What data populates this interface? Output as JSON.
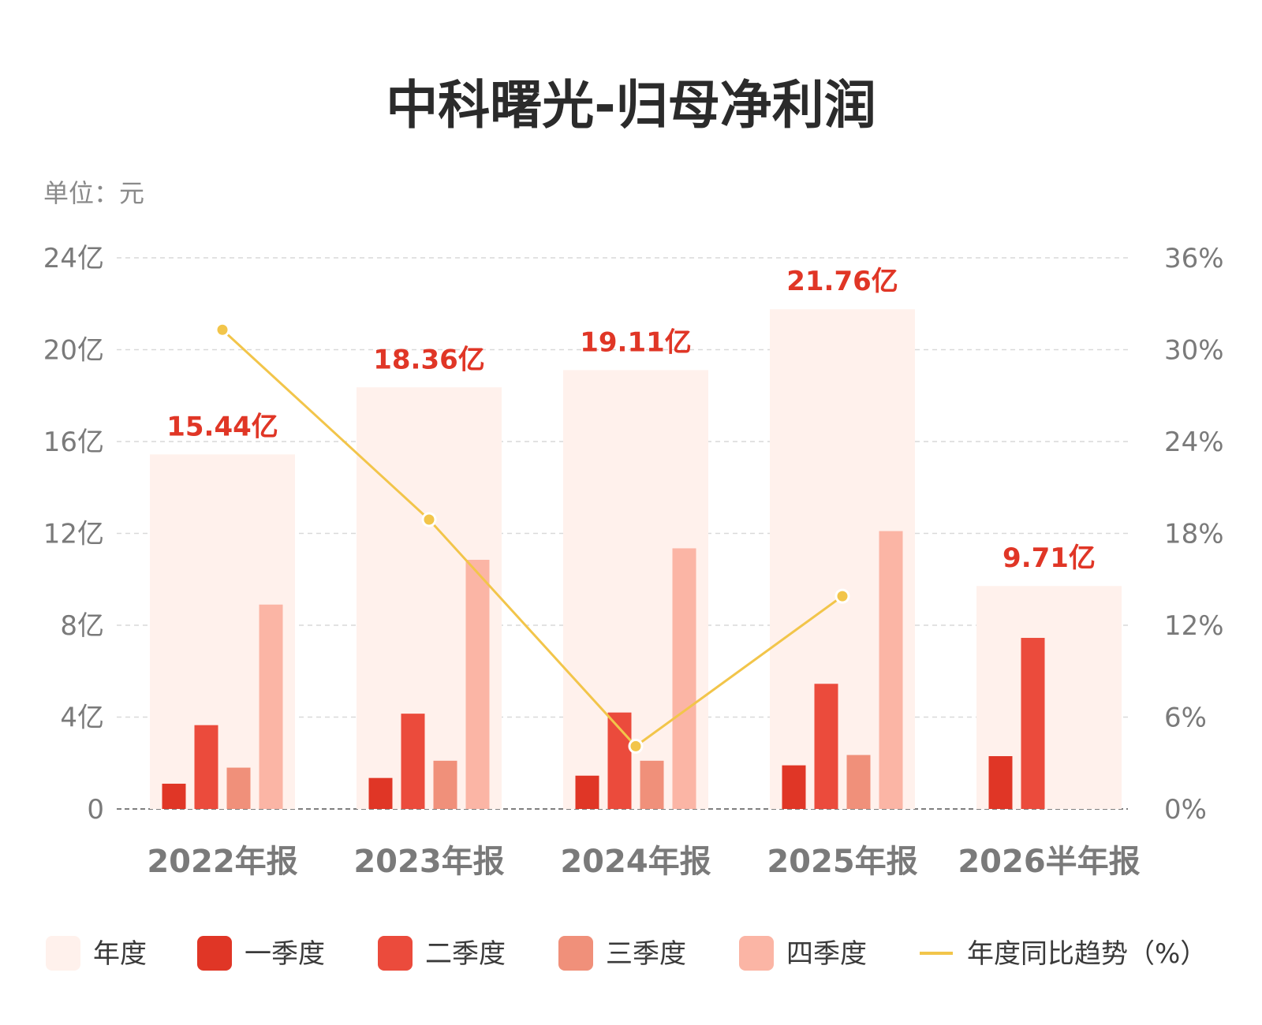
{
  "chart_data": {
    "type": "bar",
    "title": "中科曙光-归母净利润",
    "unit_label": "单位：元",
    "categories": [
      "2022年报",
      "2023年报",
      "2024年报",
      "2025年报",
      "2026半年报"
    ],
    "annual": {
      "name": "年度",
      "values": [
        15.44,
        18.36,
        19.11,
        21.76,
        9.71
      ],
      "labels": [
        "15.44亿",
        "18.36亿",
        "19.11亿",
        "21.76亿",
        "9.71亿"
      ]
    },
    "series": [
      {
        "name": "一季度",
        "values": [
          1.1,
          1.35,
          1.45,
          1.9,
          2.3
        ]
      },
      {
        "name": "二季度",
        "values": [
          3.65,
          4.15,
          4.2,
          5.45,
          7.45
        ]
      },
      {
        "name": "三季度",
        "values": [
          1.8,
          2.1,
          2.1,
          2.35,
          null
        ]
      },
      {
        "name": "四季度",
        "values": [
          8.9,
          10.85,
          11.35,
          12.1,
          null
        ]
      }
    ],
    "yoy": {
      "name": "年度同比趋势（%）",
      "values": [
        31.3,
        18.9,
        4.1,
        13.9,
        null
      ]
    },
    "y_left": {
      "lim": [
        0,
        24
      ],
      "ticks": [
        0,
        4,
        8,
        12,
        16,
        20,
        24
      ],
      "tick_labels": [
        "0",
        "4亿",
        "8亿",
        "12亿",
        "16亿",
        "20亿",
        "24亿"
      ]
    },
    "y_right": {
      "lim": [
        0,
        36
      ],
      "ticks": [
        0,
        6,
        12,
        18,
        24,
        30,
        36
      ],
      "tick_labels": [
        "0%",
        "6%",
        "12%",
        "18%",
        "24%",
        "30%",
        "36%"
      ]
    },
    "grid": true,
    "legend_position": "bottom",
    "colors": {
      "annual": "#fff1ec",
      "q1": "#e03626",
      "q2": "#eb4b3c",
      "q3": "#f0907a",
      "q4": "#fbb5a5",
      "yoy": "#f2c54a",
      "label": "#e03626"
    }
  }
}
